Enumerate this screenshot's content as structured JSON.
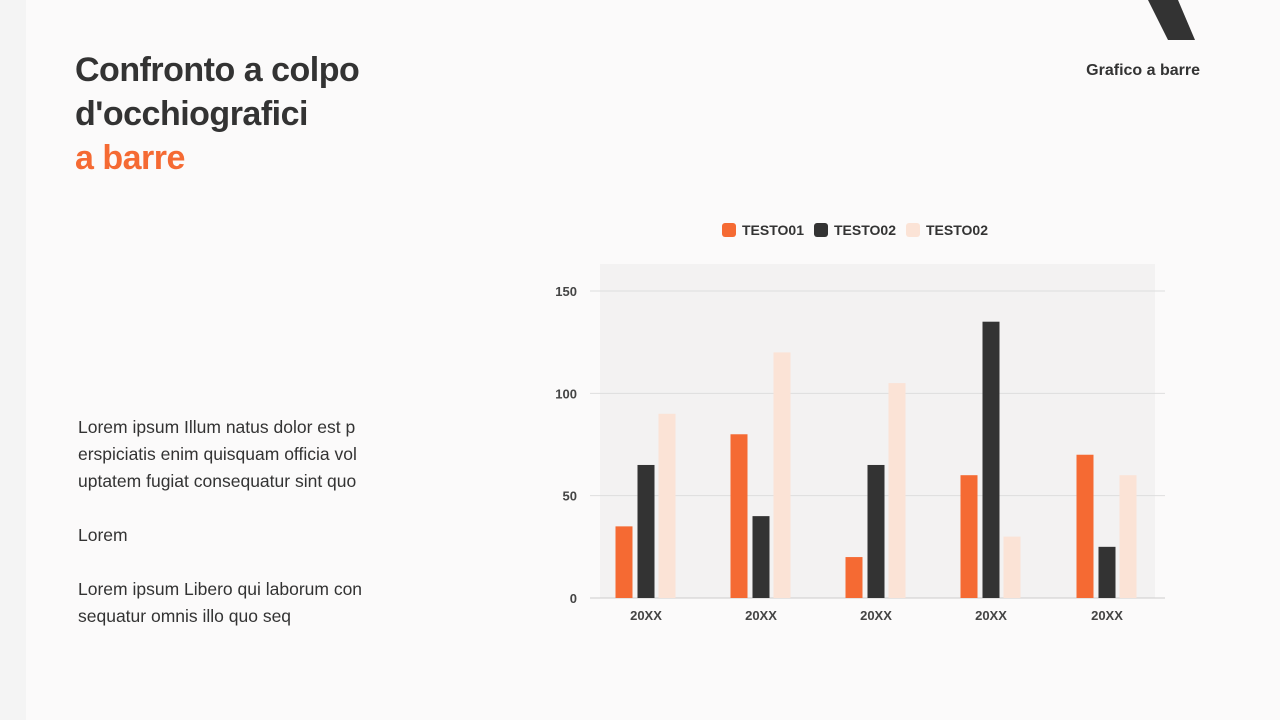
{
  "slide": {
    "title_line1": "Confronto a colpo",
    "title_line2": "d'occhiografici",
    "title_accent": "a barre",
    "tag": "Grafico a barre",
    "paragraphs": [
      "Lorem ipsum Illum natus dolor est p erspiciatis enim quisquam officia vol uptatem fugiat consequatur sint quo",
      "Lorem",
      "Lorem ipsum Libero qui laborum con sequatur omnis illo quo seq"
    ]
  },
  "colors": {
    "accent": "#f56a33",
    "dark": "#333333",
    "light": "#fbe3d6"
  },
  "chart_data": {
    "type": "bar",
    "title": "",
    "xlabel": "",
    "ylabel": "",
    "categories": [
      "20XX",
      "20XX",
      "20XX",
      "20XX",
      "20XX"
    ],
    "series": [
      {
        "name": "TESTO01",
        "color": "#f56a33",
        "values": [
          35,
          80,
          20,
          60,
          70
        ]
      },
      {
        "name": "TESTO02",
        "color": "#333333",
        "values": [
          65,
          40,
          65,
          135,
          25
        ]
      },
      {
        "name": "TESTO02",
        "color": "#fbe3d6",
        "values": [
          90,
          120,
          105,
          30,
          60
        ]
      }
    ],
    "ylim": [
      0,
      150
    ],
    "yticks": [
      0,
      50,
      100,
      150
    ],
    "grid": true,
    "legend_position": "top"
  }
}
